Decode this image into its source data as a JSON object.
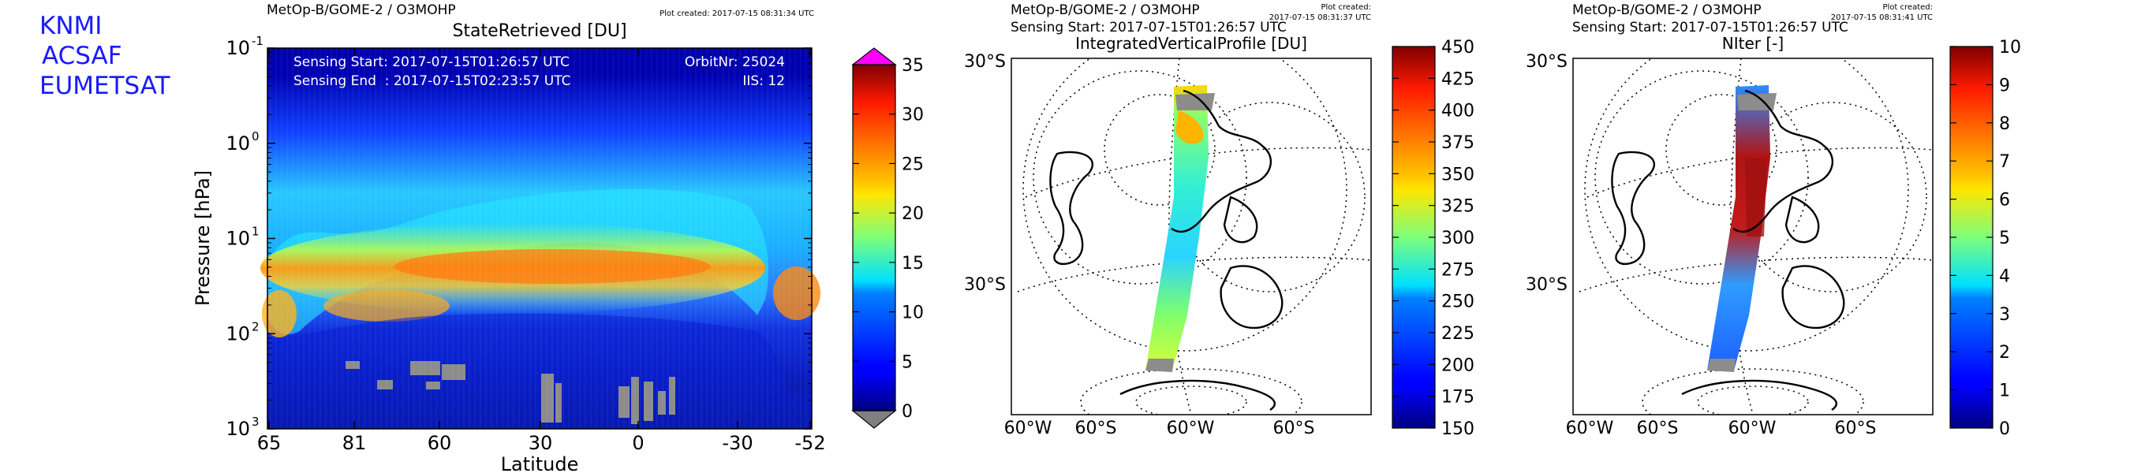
{
  "branding": [
    "KNMI",
    "ACSAF",
    "EUMETSAT"
  ],
  "colors": {
    "brand_text": "#1a1aff",
    "no_data": "#808080"
  },
  "chart_data": [
    {
      "type": "heatmap",
      "header_left": "MetOp-B/GOME-2 / O3MOHP",
      "header_right": "Plot created: 2017-07-15 08:31:34 UTC",
      "title": "StateRetrieved [DU]",
      "annotations": [
        "Sensing Start: 2017-07-15T01:26:57 UTC",
        "Sensing End  : 2017-07-15T02:23:57 UTC",
        "OrbitNr: 25024",
        "IIS: 12"
      ],
      "xlabel": "Latitude",
      "ylabel": "Pressure [hPa]",
      "x_ticks": [
        "65",
        "81",
        "60",
        "30",
        "0",
        "-30",
        "-52"
      ],
      "y_ticks": [
        {
          "base": "10",
          "exp": "-1"
        },
        {
          "base": "10",
          "exp": "0"
        },
        {
          "base": "10",
          "exp": "1"
        },
        {
          "base": "10",
          "exp": "2"
        },
        {
          "base": "10",
          "exp": "3"
        }
      ],
      "y_scale": "log",
      "ylim": [
        1000,
        0.1
      ],
      "colorbar": {
        "ticks": [
          "0",
          "5",
          "10",
          "15",
          "20",
          "25",
          "30",
          "35"
        ],
        "range": [
          0,
          35
        ],
        "extend": "both",
        "over_color": "#ff00ff",
        "under_color": "#808080"
      }
    },
    {
      "type": "map",
      "header_left": "MetOp-B/GOME-2 / O3MOHP",
      "subheader": "Sensing Start: 2017-07-15T01:26:57 UTC",
      "plot_created": [
        "Plot created:",
        "2017-07-15 08:31:37 UTC"
      ],
      "title": "IntegratedVerticalProfile [DU]",
      "lat_labels": [
        "30°S",
        "30°S"
      ],
      "bottom_labels": [
        "60°W",
        "60°S",
        "60°W",
        "60°S"
      ],
      "colorbar": {
        "ticks": [
          "150",
          "175",
          "200",
          "225",
          "250",
          "275",
          "300",
          "325",
          "350",
          "375",
          "400",
          "425",
          "450"
        ],
        "range": [
          150,
          450
        ]
      }
    },
    {
      "type": "map",
      "header_left": "MetOp-B/GOME-2 / O3MOHP",
      "subheader": "Sensing Start: 2017-07-15T01:26:57 UTC",
      "plot_created": [
        "Plot created:",
        "2017-07-15 08:31:41 UTC"
      ],
      "title": "NIter [-]",
      "lat_labels": [
        "30°S",
        "30°S"
      ],
      "bottom_labels": [
        "60°W",
        "60°S",
        "60°W",
        "60°S"
      ],
      "colorbar": {
        "ticks": [
          "0",
          "1",
          "2",
          "3",
          "4",
          "5",
          "6",
          "7",
          "8",
          "9",
          "10"
        ],
        "range": [
          0,
          10
        ]
      }
    }
  ]
}
